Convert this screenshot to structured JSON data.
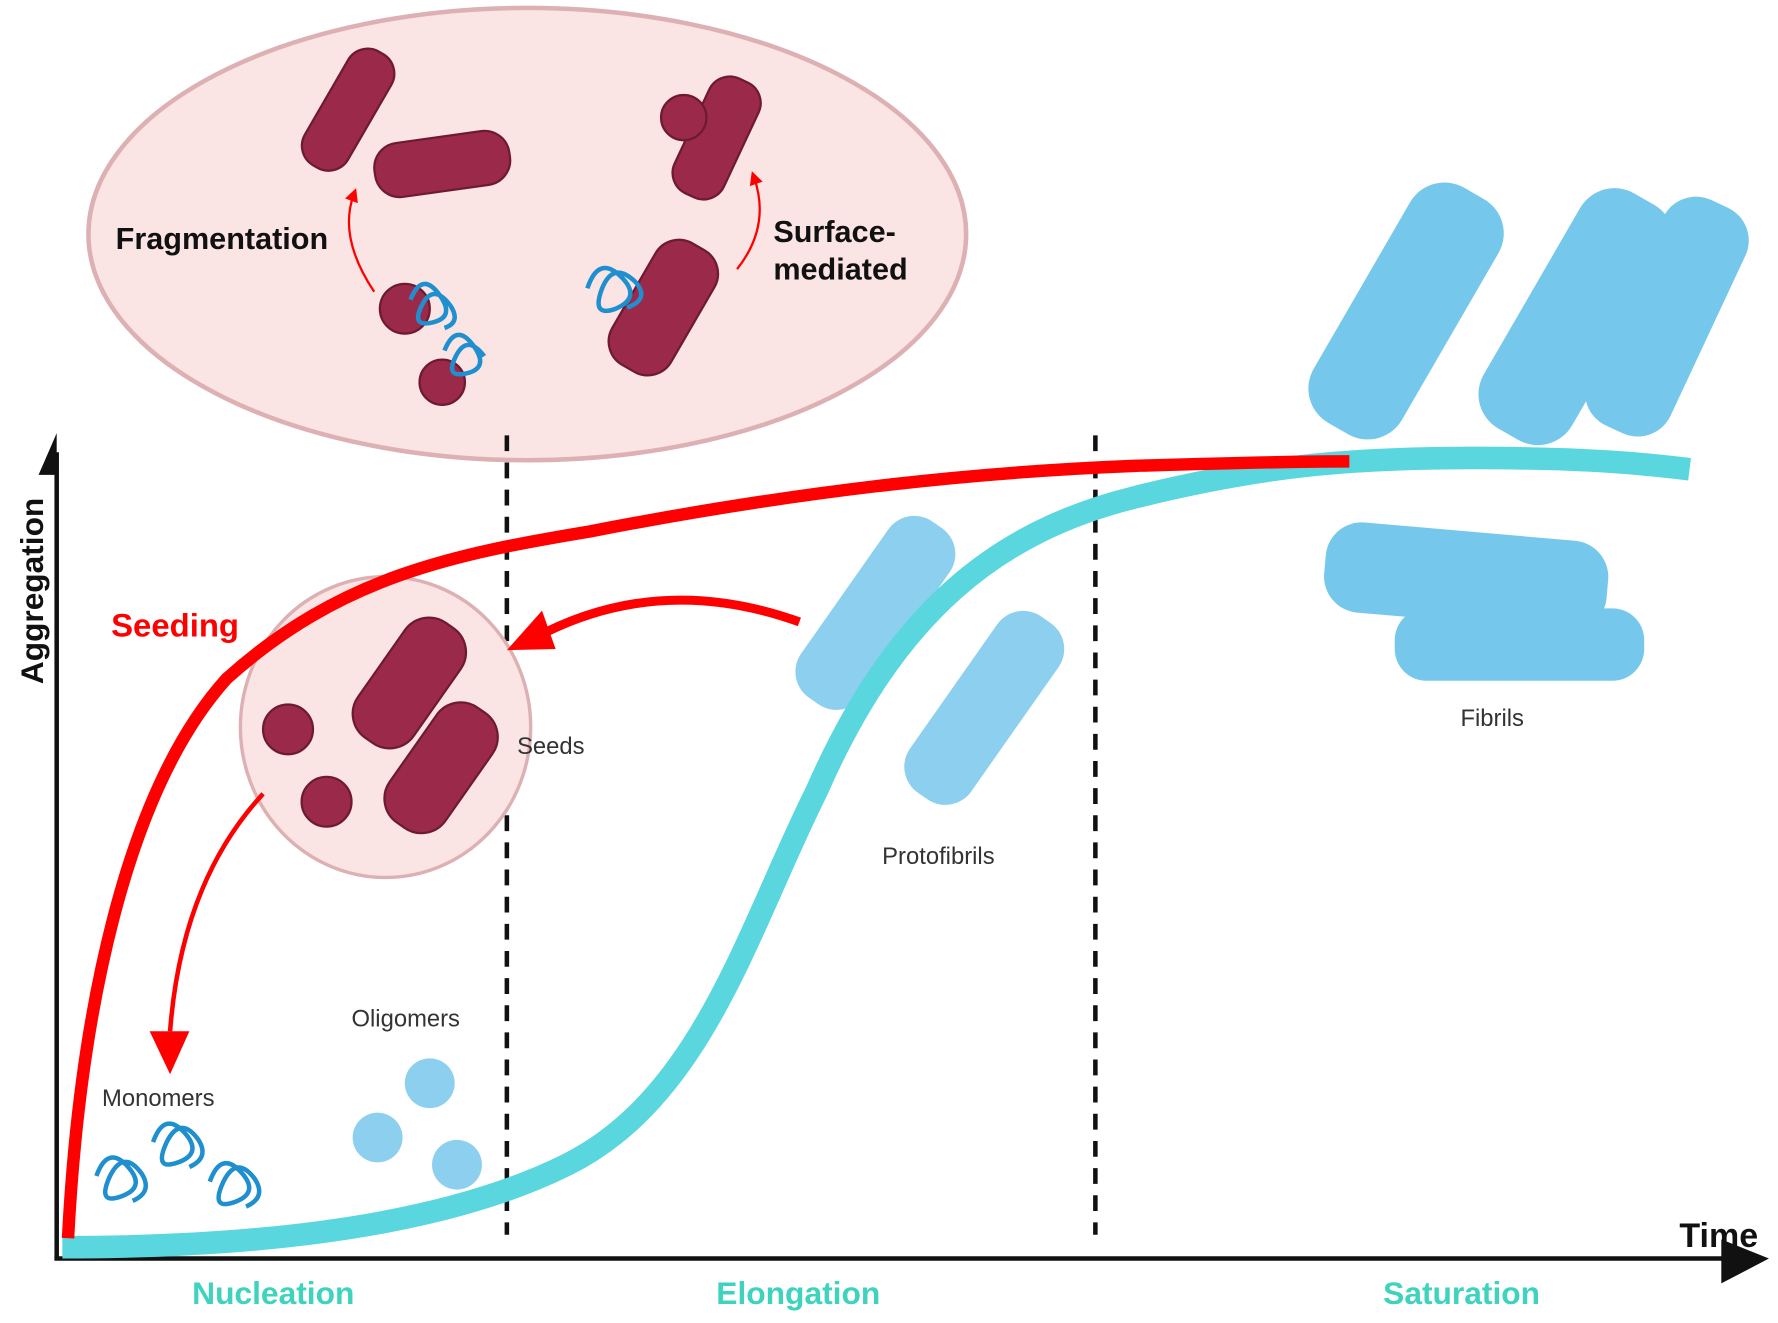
{
  "axes": {
    "y_label": "Aggregation",
    "x_label": "Time"
  },
  "phases": [
    "Nucleation",
    "Elongation",
    "Saturation"
  ],
  "inset": {
    "fragmentation": "Fragmentation",
    "surface_line1": "Surface-",
    "surface_line2": "mediated"
  },
  "labels": {
    "seeding": "Seeding",
    "seeds": "Seeds",
    "monomers": "Monomers",
    "oligomers": "Oligomers",
    "protofibrils": "Protofibrils",
    "fibrils": "Fibrils"
  },
  "colors": {
    "seeded_curve": "#ff0000",
    "unseeded_curve": "#5ad6df",
    "phase_text": "#3dd3bd",
    "seed_aggregate": "#9b2a4a",
    "fibril": "#6ec6ea",
    "inset_fill": "#fbe4e4",
    "inset_stroke": "#ddb0b3"
  }
}
